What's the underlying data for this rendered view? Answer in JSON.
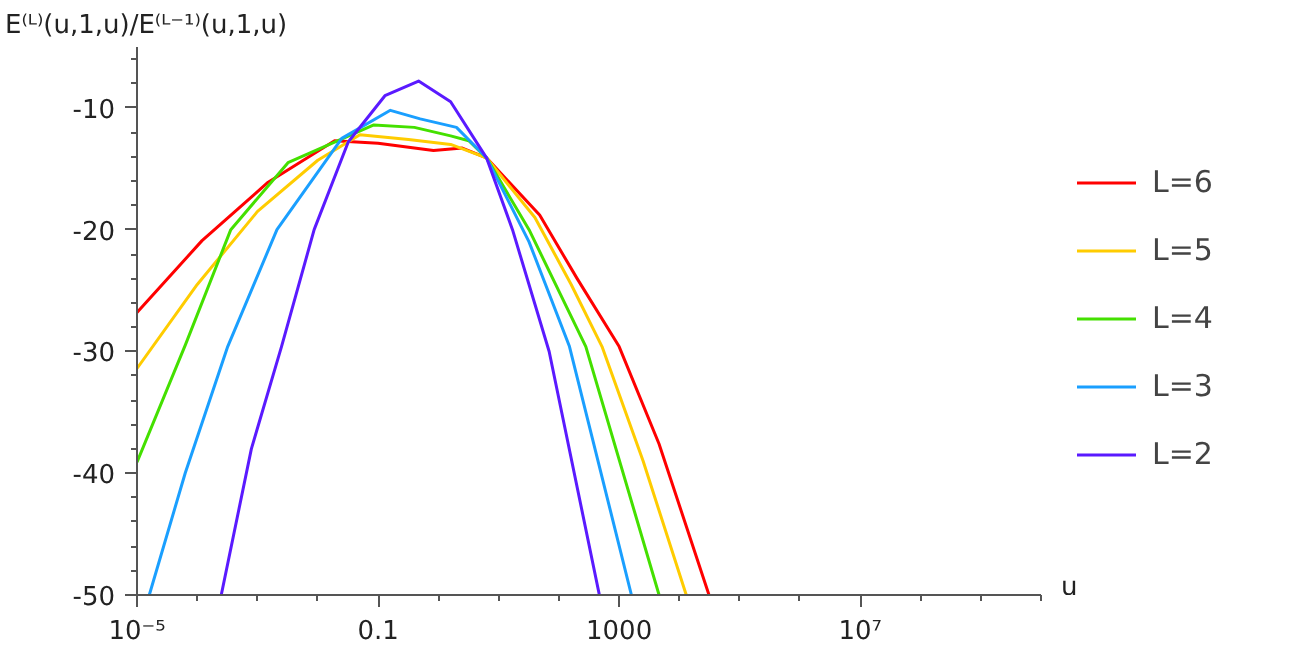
{
  "chart_data": {
    "type": "line",
    "ylabel": "E⁽ᴸ⁾(u,1,u)/E⁽ᴸ⁻¹⁾(u,1,u)",
    "xlabel": "u",
    "log": "x",
    "xlim": [
      1e-05,
      10000000000.0
    ],
    "xticks": [
      {
        "value": 1e-05,
        "label": "10⁻⁵"
      },
      0.1,
      1000,
      {
        "value": 10000000.0,
        "label": "10⁷"
      }
    ],
    "ylim": [
      -50,
      -5
    ],
    "yticks": [
      -50,
      -40,
      -30,
      -20,
      -10
    ],
    "grid": false,
    "legend": "right",
    "marker": "none",
    "line_style": "solid",
    "series": [
      {
        "name": "L=6",
        "color": "#ff0000",
        "x": [
          1e-05,
          0.00012,
          0.0015,
          0.019,
          0.1,
          0.83,
          2.5,
          6.3,
          48,
          200,
          1000,
          4600,
          31000
        ],
        "values": [
          -26.8,
          -20.9,
          -16.1,
          -12.7,
          -12.9,
          -13.5,
          -13.3,
          -14.1,
          -18.8,
          -24,
          -29.6,
          -37.6,
          -50
        ]
      },
      {
        "name": "L=5",
        "color": "#ffcc00",
        "x": [
          1e-05,
          0.0001,
          0.001,
          0.01,
          0.05,
          0.32,
          1.6,
          6.3,
          40,
          160,
          520,
          2500,
          13000
        ],
        "values": [
          -31.4,
          -24.5,
          -18.5,
          -14.3,
          -12.2,
          -12.6,
          -13.0,
          -14.1,
          -19.0,
          -24.5,
          -29.6,
          -39,
          -50
        ]
      },
      {
        "name": "L=4",
        "color": "#44e000",
        "x": [
          1e-05,
          6.3e-05,
          0.00036,
          0.0032,
          0.085,
          0.4,
          1.6,
          3.2,
          6.3,
          32,
          280,
          4600
        ],
        "values": [
          -39.1,
          -29.5,
          -20,
          -14.5,
          -11.4,
          -11.6,
          -12.3,
          -12.7,
          -14.1,
          -20,
          -29.6,
          -50
        ]
      },
      {
        "name": "L=3",
        "color": "#1a9fff",
        "x": [
          1.6e-05,
          6.3e-05,
          0.00032,
          0.0021,
          0.025,
          0.16,
          0.5,
          2.0,
          6.3,
          32,
          150,
          1600
        ],
        "values": [
          -50,
          -40,
          -29.6,
          -20,
          -12.5,
          -10.2,
          -10.9,
          -11.6,
          -14.1,
          -21,
          -29.6,
          -50
        ]
      },
      {
        "name": "L=2",
        "color": "#5a1aff",
        "x": [
          0.00025,
          0.00079,
          0.0025,
          0.0087,
          0.032,
          0.13,
          0.47,
          1.6,
          6.3,
          17,
          69,
          470
        ],
        "values": [
          -50,
          -38,
          -29.6,
          -20,
          -12.8,
          -9.0,
          -7.8,
          -9.5,
          -14.1,
          -20,
          -30,
          -50
        ]
      }
    ]
  }
}
